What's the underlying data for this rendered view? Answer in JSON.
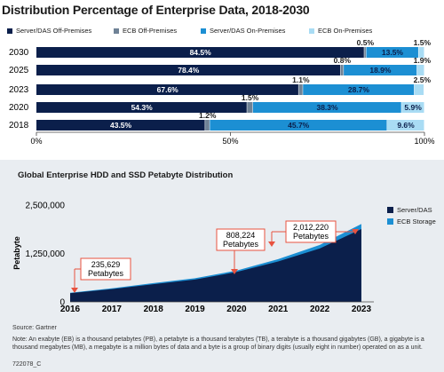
{
  "chart_data": [
    {
      "type": "bar",
      "orientation": "horizontal",
      "stacked": true,
      "title": "Distribution Percentage of Enterprise Data, 2018-2030",
      "categories": [
        "2030",
        "2025",
        "2023",
        "2020",
        "2018"
      ],
      "series": [
        {
          "name": "Server/DAS Off-Premises",
          "color": "#0b1f4b",
          "values": [
            84.5,
            78.4,
            67.6,
            54.3,
            43.5
          ],
          "labels": [
            "84.5%",
            "78.4%",
            "67.6%",
            "54.3%",
            "43.5%"
          ]
        },
        {
          "name": "ECB Off-Premises",
          "color": "#6f8296",
          "values": [
            0.5,
            0.8,
            1.1,
            1.5,
            1.2
          ],
          "labels": [
            "0.5%",
            "0.8%",
            "1.1%",
            "1.5%",
            "1.2%"
          ]
        },
        {
          "name": "Server/DAS On-Premises",
          "color": "#1c8fd3",
          "values": [
            13.5,
            18.9,
            28.7,
            38.3,
            45.7
          ],
          "labels": [
            "13.5%",
            "18.9%",
            "28.7%",
            "38.3%",
            "45.7%"
          ]
        },
        {
          "name": "ECB On-Premises",
          "color": "#a9dcf4",
          "values": [
            1.5,
            1.9,
            2.5,
            5.9,
            9.6
          ],
          "labels": [
            "1.5%",
            "1.9%",
            "2.5%",
            "5.9%",
            "9.6%"
          ]
        }
      ],
      "xticks": [
        "0%",
        "50%",
        "100%"
      ],
      "xlim": [
        0,
        100
      ],
      "grid": false,
      "legend": "top"
    },
    {
      "type": "area",
      "stacked": true,
      "title": "Global Enterprise HDD and SSD Petabyte Distribution",
      "ylabel": "Petabyte",
      "xlabel": "",
      "x": [
        2016,
        2017,
        2018,
        2019,
        2020,
        2021,
        2022,
        2023
      ],
      "series": [
        {
          "name": "Server/DAS",
          "color": "#0b1f4b",
          "values": [
            223000,
            330000,
            455000,
            575000,
            770000,
            1045000,
            1380000,
            1880000
          ]
        },
        {
          "name": "ECB Storage",
          "color": "#1c8fd3",
          "values": [
            12629,
            20000,
            30000,
            35000,
            38224,
            60000,
            90000,
            132220
          ]
        }
      ],
      "yticks": [
        "0",
        "1,250,000",
        "2,500,000"
      ],
      "xticklabels": [
        "2016",
        "2017",
        "2018",
        "2019",
        "2020",
        "2021",
        "2022",
        "2023"
      ],
      "ylim": [
        0,
        2500000
      ],
      "grid": false,
      "legend": "right",
      "annotations": [
        {
          "x": 2016,
          "value": 235629,
          "lines": [
            "235,629",
            "Petabytes"
          ]
        },
        {
          "x": 2020,
          "value": 808224,
          "lines": [
            "808,224",
            "Petabytes"
          ]
        },
        {
          "x": 2023,
          "value": 2012220,
          "lines": [
            "2,012,220",
            "Petabytes"
          ]
        }
      ]
    }
  ],
  "text": {
    "title1": "Distribution Percentage of Enterprise Data, 2018-2030",
    "title2": "Global Enterprise HDD and SSD Petabyte Distribution",
    "source": "Source: Gartner",
    "note": "Note: An exabyte (EB) is a thousand petabytes (PB), a petabyte is a thousand terabytes (TB), a terabyte is a thousand gigabytes (GB), a gigabyte is a thousand megabytes (MB), a megabyte is a million bytes of data and a byte is a group of binary digits (usually eight in number) operated on as a unit.",
    "code": "722078_C"
  },
  "colors": {
    "annotation": "#e8523f",
    "panel_background": "#e9edf1"
  }
}
